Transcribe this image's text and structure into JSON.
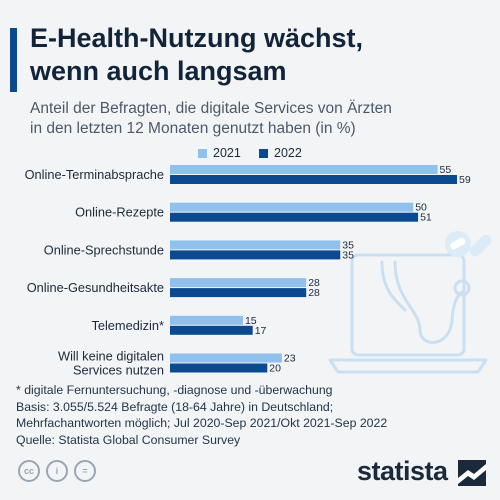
{
  "header": {
    "title_lines": [
      "E-Health-Nutzung wächst,",
      "wenn auch langsam"
    ],
    "subtitle_lines": [
      "Anteil der Befragten, die digitale Services von Ärzten",
      "in den letzten 12 Monaten genutzt haben (in %)"
    ]
  },
  "colors": {
    "accent": "#0b4a8f",
    "series_2021": "#8fc1ec",
    "series_2022": "#0b4a8f"
  },
  "chart_data": {
    "type": "bar",
    "orientation": "horizontal",
    "title": "E-Health-Nutzung wächst, wenn auch langsam",
    "subtitle": "Anteil der Befragten, die digitale Services von Ärzten in den letzten 12 Monaten genutzt haben (in %)",
    "categories": [
      [
        "Online-Terminabsprache"
      ],
      [
        "Online-Rezepte"
      ],
      [
        "Online-Sprechstunde"
      ],
      [
        "Online-Gesundheitsakte"
      ],
      [
        "Telemedizin*"
      ],
      [
        "Will keine digitalen",
        "Services nutzen"
      ]
    ],
    "series": [
      {
        "name": "2021",
        "color": "#8fc1ec",
        "values": [
          55,
          50,
          35,
          28,
          15,
          23
        ]
      },
      {
        "name": "2022",
        "color": "#0b4a8f",
        "values": [
          59,
          51,
          35,
          28,
          17,
          20
        ]
      }
    ],
    "xlim": [
      0,
      59
    ],
    "legend_position": "top",
    "grid": false,
    "data_labels": true
  },
  "footnote": {
    "lines": [
      "* digitale Fernuntersuchung, -diagnose und -überwachung",
      "Basis: 3.055/5.524 Befragte (18-64 Jahre) in Deutschland;",
      "Mehrfachantworten möglich; Jul 2020-Sep 2021/Okt 2021-Sep 2022",
      "Quelle: Statista Global Consumer Survey"
    ]
  },
  "license_icons": [
    "cc",
    "i",
    "="
  ],
  "brand": {
    "name": "statista"
  }
}
